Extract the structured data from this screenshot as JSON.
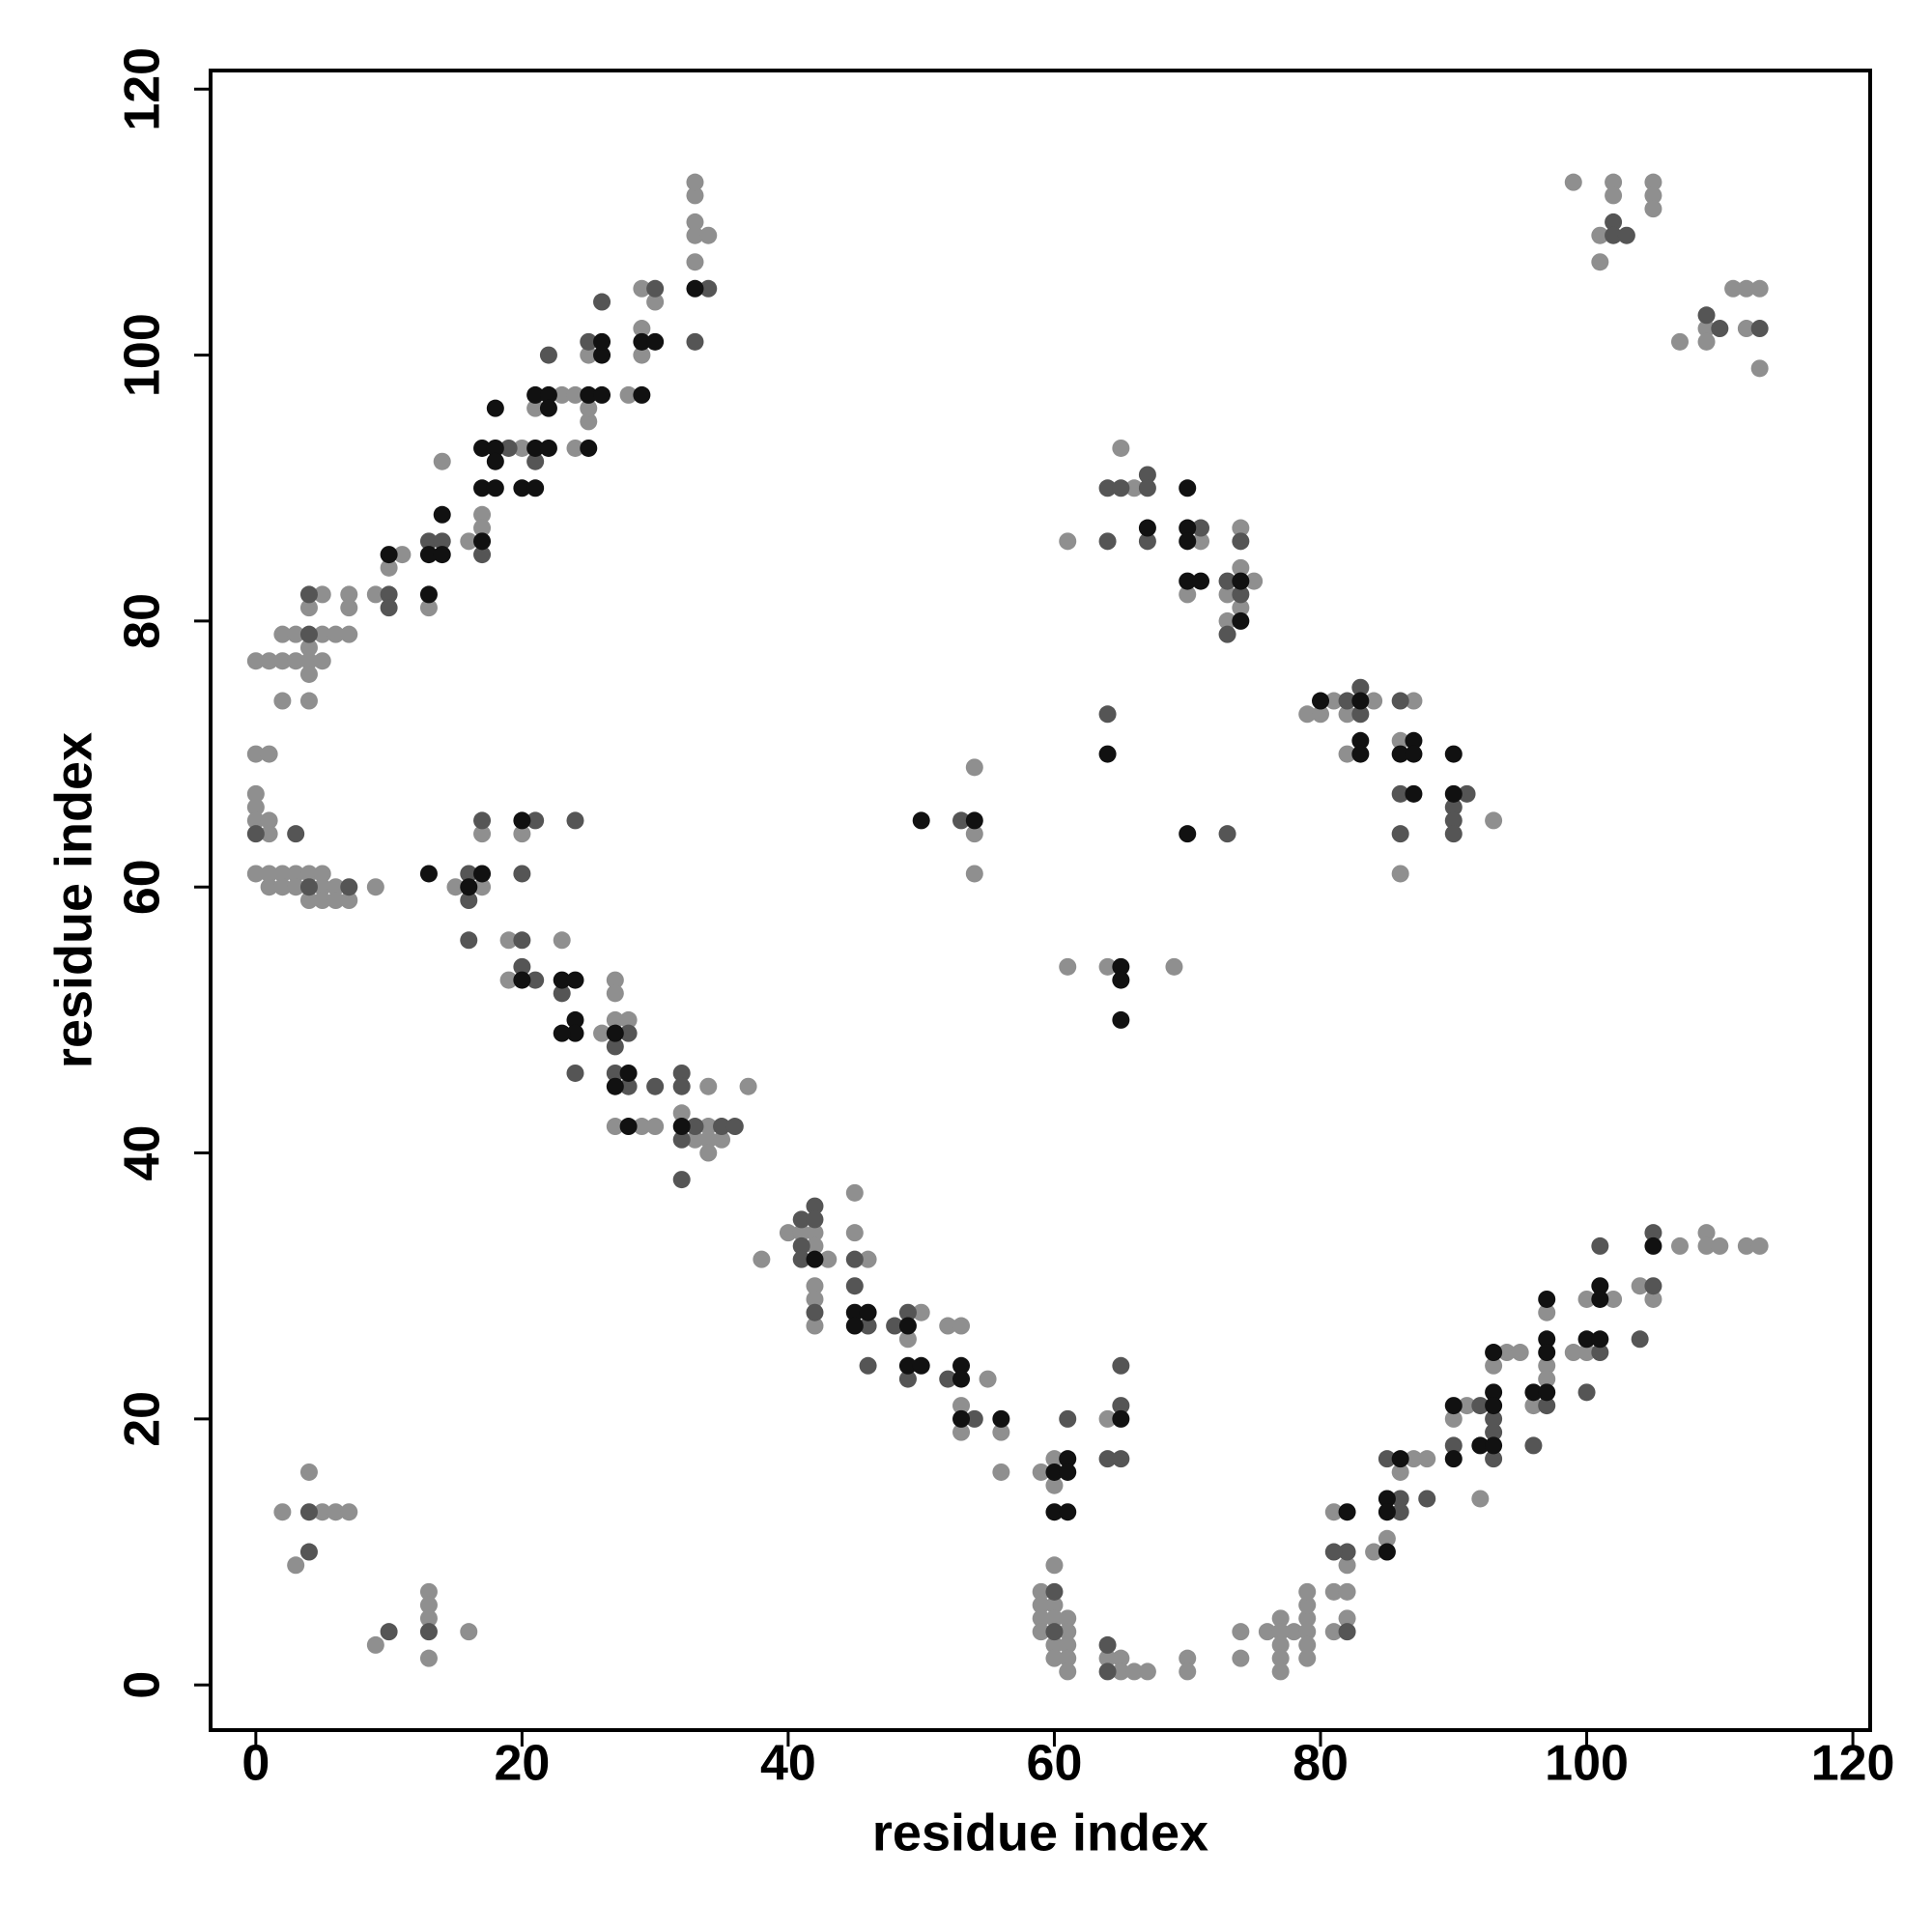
{
  "chart_data": {
    "type": "scatter",
    "x_label": "residue index",
    "y_label": "residue index",
    "xlim": [
      -3.4,
      121.3
    ],
    "ylim": [
      -3.4,
      121.4
    ],
    "xticks": [
      0,
      20,
      40,
      60,
      80,
      100,
      120
    ],
    "yticks": [
      0,
      20,
      40,
      60,
      80,
      100,
      120
    ],
    "grid": false,
    "series": [
      {
        "color": "#8f8f8f",
        "x": [
          0,
          1,
          2,
          3,
          4,
          5,
          1,
          2,
          3,
          5,
          6,
          4,
          5,
          6,
          7,
          9,
          15,
          17,
          17,
          20,
          19,
          23,
          19,
          26,
          27,
          27,
          27,
          28,
          27,
          29,
          30,
          32,
          34,
          33,
          34,
          34,
          35,
          34,
          37,
          38,
          40,
          41,
          42,
          42,
          43,
          42,
          42,
          42,
          45,
          45,
          46,
          50,
          49,
          52,
          53,
          53,
          53,
          55,
          56,
          56,
          59,
          60,
          60,
          60,
          64,
          59,
          59,
          60,
          59,
          60,
          61,
          59,
          61,
          60,
          61,
          60,
          61,
          61,
          64,
          65,
          65,
          66,
          67,
          70,
          70,
          74,
          74,
          76,
          77,
          77,
          77,
          77,
          77,
          78,
          79,
          79,
          79,
          79,
          79,
          79,
          81,
          82,
          81,
          82,
          82,
          81,
          84,
          85,
          86,
          87,
          88,
          90,
          91,
          92,
          93,
          94,
          95,
          96,
          97,
          97,
          97,
          99,
          100,
          100,
          102,
          104,
          105,
          107,
          109,
          109,
          110,
          112,
          113,
          2,
          4,
          5,
          6,
          7,
          3,
          9,
          13,
          13,
          13,
          13,
          16,
          0,
          1,
          0,
          0,
          0,
          1,
          1,
          0,
          1,
          2,
          3,
          4,
          5,
          2,
          3,
          5,
          6,
          7,
          4,
          4,
          2,
          4,
          4,
          5,
          7,
          7,
          9,
          10,
          11,
          13,
          14,
          16,
          17,
          17,
          20,
          21,
          23,
          24,
          24,
          25,
          25,
          25,
          28,
          29,
          29,
          29,
          30,
          33,
          33,
          34,
          33,
          33,
          33,
          61,
          66,
          65,
          71,
          70,
          73,
          73,
          74,
          74,
          74,
          75,
          79,
          80,
          81,
          82,
          82,
          84,
          87,
          86,
          86,
          93,
          54,
          54,
          54,
          61,
          64,
          69,
          99,
          102,
          102,
          105,
          105,
          105,
          101,
          101,
          107,
          109,
          109,
          111,
          112,
          113,
          112,
          113
        ],
        "y": [
          61,
          61,
          61,
          61,
          61,
          61,
          60,
          60,
          60,
          60,
          60,
          59,
          59,
          59,
          59,
          60,
          60,
          60,
          64,
          64,
          56,
          56,
          53,
          49,
          53,
          52,
          50,
          50,
          42,
          42,
          42,
          43,
          45,
          41,
          42,
          41,
          41,
          40,
          45,
          32,
          34,
          34,
          34,
          33,
          32,
          30,
          29,
          27,
          37,
          34,
          32,
          28,
          26,
          27,
          27,
          21,
          19,
          23,
          19,
          16,
          16,
          17,
          15,
          9,
          20,
          7,
          6,
          6,
          5,
          5,
          5,
          4,
          4,
          3,
          3,
          2,
          2,
          1,
          2,
          2,
          1,
          1,
          1,
          2,
          1,
          4,
          2,
          4,
          5,
          4,
          3,
          2,
          1,
          4,
          5,
          4,
          3,
          2,
          6,
          7,
          13,
          9,
          7,
          7,
          5,
          4,
          10,
          11,
          16,
          17,
          17,
          20,
          21,
          14,
          24,
          25,
          25,
          21,
          28,
          24,
          23,
          25,
          29,
          25,
          29,
          30,
          29,
          33,
          34,
          33,
          33,
          33,
          33,
          13,
          16,
          13,
          13,
          13,
          9,
          3,
          7,
          6,
          5,
          2,
          4,
          70,
          70,
          67,
          66,
          65,
          65,
          64,
          77,
          77,
          77,
          77,
          77,
          77,
          79,
          79,
          79,
          79,
          79,
          78,
          76,
          74,
          74,
          81,
          82,
          82,
          81,
          82,
          84,
          85,
          81,
          92,
          86,
          88,
          87,
          93,
          96,
          97,
          97,
          93,
          95,
          96,
          100,
          97,
          100,
          102,
          105,
          104,
          107,
          109,
          109,
          110,
          112,
          113,
          86,
          90,
          93,
          86,
          82,
          82,
          80,
          87,
          84,
          81,
          83,
          73,
          73,
          74,
          73,
          70,
          74,
          74,
          71,
          61,
          65,
          64,
          61,
          69,
          54,
          54,
          54,
          113,
          113,
          112,
          113,
          112,
          111,
          109,
          107,
          101,
          102,
          101,
          105,
          105,
          105,
          102,
          99
        ]
      },
      {
        "color": "#555555",
        "x": [
          4,
          7,
          16,
          16,
          16,
          17,
          21,
          20,
          24,
          20,
          20,
          21,
          23,
          24,
          28,
          27,
          27,
          28,
          30,
          32,
          32,
          33,
          32,
          35,
          36,
          32,
          41,
          41,
          41,
          42,
          42,
          42,
          45,
          45,
          46,
          46,
          48,
          49,
          49,
          52,
          54,
          61,
          65,
          65,
          64,
          65,
          60,
          60,
          64,
          64,
          82,
          81,
          82,
          85,
          86,
          86,
          88,
          90,
          92,
          93,
          93,
          93,
          96,
          97,
          100,
          101,
          101,
          104,
          105,
          105,
          4,
          4,
          10,
          13,
          0,
          3,
          4,
          4,
          10,
          10,
          13,
          14,
          17,
          19,
          21,
          22,
          25,
          26,
          30,
          33,
          34,
          64,
          64,
          65,
          67,
          67,
          67,
          71,
          73,
          73,
          74,
          74,
          82,
          83,
          83,
          86,
          86,
          86,
          91,
          90,
          90,
          90,
          64,
          73,
          53,
          102,
          102,
          103,
          109,
          110,
          113
        ],
        "y": [
          60,
          60,
          61,
          59,
          56,
          65,
          65,
          61,
          65,
          56,
          54,
          53,
          52,
          46,
          49,
          48,
          46,
          45,
          45,
          46,
          45,
          42,
          41,
          42,
          42,
          38,
          35,
          33,
          32,
          36,
          35,
          28,
          32,
          30,
          27,
          24,
          27,
          28,
          23,
          23,
          20,
          20,
          24,
          21,
          17,
          17,
          7,
          4,
          3,
          1,
          10,
          10,
          4,
          17,
          14,
          13,
          14,
          18,
          21,
          20,
          19,
          17,
          18,
          21,
          22,
          33,
          25,
          26,
          34,
          30,
          13,
          10,
          4,
          4,
          64,
          64,
          79,
          82,
          82,
          81,
          86,
          86,
          85,
          93,
          92,
          100,
          101,
          104,
          105,
          101,
          105,
          86,
          90,
          90,
          91,
          90,
          86,
          87,
          83,
          79,
          86,
          82,
          74,
          75,
          73,
          74,
          67,
          64,
          67,
          66,
          65,
          64,
          73,
          64,
          65,
          110,
          109,
          109,
          103,
          102,
          102
        ]
      },
      {
        "color": "#111111",
        "x": [
          13,
          16,
          17,
          20,
          20,
          23,
          24,
          24,
          24,
          23,
          27,
          28,
          27,
          28,
          32,
          42,
          45,
          46,
          45,
          49,
          49,
          50,
          53,
          53,
          53,
          56,
          60,
          61,
          61,
          60,
          61,
          65,
          82,
          85,
          85,
          85,
          86,
          90,
          90,
          92,
          93,
          93,
          93,
          93,
          96,
          97,
          97,
          97,
          97,
          100,
          101,
          101,
          101,
          105,
          10,
          13,
          14,
          13,
          14,
          17,
          17,
          18,
          17,
          18,
          18,
          18,
          20,
          21,
          21,
          22,
          21,
          22,
          22,
          25,
          25,
          26,
          26,
          26,
          29,
          29,
          30,
          33,
          67,
          70,
          70,
          70,
          70,
          71,
          74,
          74,
          80,
          83,
          83,
          83,
          87,
          86,
          87,
          87,
          90,
          90,
          64,
          70,
          50,
          54,
          65,
          65,
          65
        ],
        "y": [
          61,
          60,
          61,
          65,
          53,
          53,
          53,
          50,
          49,
          49,
          49,
          46,
          45,
          42,
          42,
          32,
          28,
          28,
          27,
          27,
          24,
          24,
          24,
          23,
          20,
          20,
          16,
          17,
          16,
          13,
          13,
          20,
          13,
          10,
          14,
          13,
          17,
          21,
          17,
          18,
          25,
          22,
          21,
          18,
          22,
          29,
          26,
          25,
          22,
          26,
          30,
          29,
          26,
          33,
          85,
          85,
          85,
          82,
          88,
          86,
          90,
          90,
          93,
          93,
          92,
          96,
          90,
          90,
          93,
          93,
          97,
          97,
          96,
          93,
          97,
          97,
          100,
          101,
          97,
          101,
          101,
          105,
          87,
          90,
          87,
          86,
          83,
          83,
          83,
          80,
          74,
          74,
          71,
          70,
          71,
          70,
          70,
          67,
          70,
          67,
          70,
          64,
          65,
          65,
          54,
          53,
          50
        ]
      }
    ]
  }
}
